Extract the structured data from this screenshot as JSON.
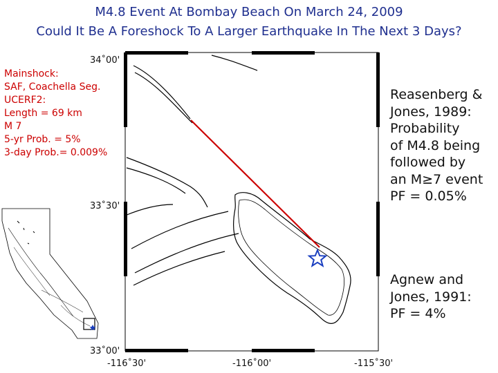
{
  "title_line1": "M4.8 Event At Bombay Beach On March 24, 2009",
  "title_line2": "Could It Be A Foreshock To A Larger Earthquake In The Next 3 Days?",
  "mainshock": {
    "lines": [
      "Mainshock:",
      "SAF, Coachella Seg.",
      "UCERF2:",
      "Length = 69 km",
      "M 7",
      "5-yr Prob. = 5%",
      "3-day Prob.= 0.009%"
    ]
  },
  "reasenberg": {
    "lines": [
      "Reasenberg &",
      "Jones, 1989:",
      "Probability",
      "of M4.8 being",
      "followed by",
      "an M≥7 event",
      "PF = 0.05%"
    ]
  },
  "agnew": {
    "lines": [
      "Agnew and",
      "Jones, 1991:",
      "PF = 4%"
    ]
  },
  "map": {
    "lat_labels": [
      "34˚00'",
      "33˚30'",
      "33˚00'"
    ],
    "lon_labels": [
      "-116˚30'",
      "-116˚00'",
      "-115˚30'"
    ],
    "rupture_color": "#cc0000",
    "epicenter_color": "#1a3fc0",
    "epicenter_icon": "star-icon"
  }
}
